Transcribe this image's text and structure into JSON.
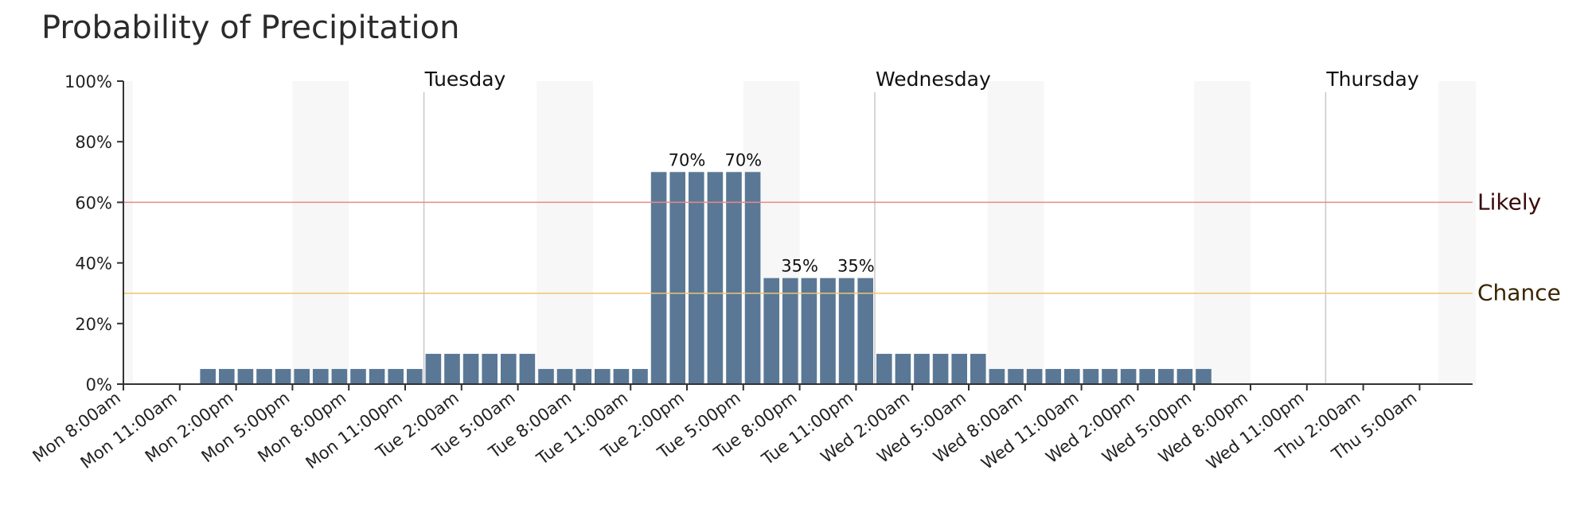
{
  "chart_data": {
    "type": "bar",
    "title": "Probability of Precipitation",
    "start_hour": 8,
    "y_ticks": [
      "0%",
      "20%",
      "40%",
      "60%",
      "80%",
      "100%"
    ],
    "ylim": [
      0,
      100
    ],
    "x_tick_labels": [
      "Mon 8:00am",
      "Mon 11:00am",
      "Mon 2:00pm",
      "Mon 5:00pm",
      "Mon 8:00pm",
      "Mon 11:00pm",
      "Tue 2:00am",
      "Tue 5:00am",
      "Tue 8:00am",
      "Tue 11:00am",
      "Tue 2:00pm",
      "Tue 5:00pm",
      "Tue 8:00pm",
      "Tue 11:00pm",
      "Wed 2:00am",
      "Wed 5:00am",
      "Wed 8:00am",
      "Wed 11:00am",
      "Wed 2:00pm",
      "Wed 5:00pm",
      "Wed 8:00pm",
      "Wed 11:00pm",
      "Thu 2:00am",
      "Thu 5:00am"
    ],
    "day_labels": [
      {
        "label": "Tuesday",
        "hour": 16
      },
      {
        "label": "Wednesday",
        "hour": 40
      },
      {
        "label": "Thursday",
        "hour": 64
      }
    ],
    "thresholds": [
      {
        "label": "Likely",
        "value": 60,
        "color": "#e8898b",
        "text_color": "#3a0a0a"
      },
      {
        "label": "Chance",
        "value": 30,
        "color": "#f0c46e",
        "text_color": "#3a2500"
      }
    ],
    "night_bands": [
      [
        0,
        0.5
      ],
      [
        9,
        12
      ],
      [
        22,
        25
      ],
      [
        33,
        36
      ],
      [
        46,
        49
      ],
      [
        57,
        60
      ],
      [
        70,
        72
      ]
    ],
    "bar_color": "#5a7896",
    "values": [
      0,
      0,
      0,
      0,
      5,
      5,
      5,
      5,
      5,
      5,
      5,
      5,
      5,
      5,
      5,
      5,
      10,
      10,
      10,
      10,
      10,
      10,
      5,
      5,
      5,
      5,
      5,
      5,
      70,
      70,
      70,
      70,
      70,
      70,
      35,
      35,
      35,
      35,
      35,
      35,
      10,
      10,
      10,
      10,
      10,
      10,
      5,
      5,
      5,
      5,
      5,
      5,
      5,
      5,
      5,
      5,
      5,
      5,
      0,
      0,
      0,
      0,
      0,
      0,
      0,
      0,
      0,
      0,
      0,
      0,
      0,
      0
    ],
    "data_labels": [
      {
        "index": 30,
        "text": "70%"
      },
      {
        "index": 33,
        "text": "70%"
      },
      {
        "index": 36,
        "text": "35%"
      },
      {
        "index": 39,
        "text": "35%"
      }
    ]
  }
}
